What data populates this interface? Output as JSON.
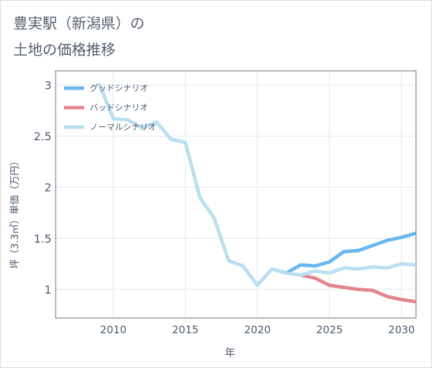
{
  "title_line1": "豊実駅（新潟県）の",
  "title_line2": "土地の価格推移",
  "chart_data": {
    "type": "line",
    "ylabel": "坪（3.3㎡）単価（万円）",
    "xlabel": "年",
    "xlim": [
      2006,
      2031
    ],
    "ylim": [
      0.72,
      3.14
    ],
    "xticks": [
      2010,
      2015,
      2020,
      2025,
      2030
    ],
    "yticks": [
      1,
      1.5,
      2,
      2.5,
      3
    ],
    "xtick_labels": [
      "2010",
      "2015",
      "2020",
      "2025",
      "2030"
    ],
    "ytick_labels": [
      "1",
      "1.5",
      "2",
      "2.5",
      "3"
    ],
    "legend_position": "top-left",
    "series": [
      {
        "name": "グッドシナリオ",
        "color": "#68b8ee",
        "x": [
          2021,
          2022,
          2023,
          2024,
          2025,
          2026,
          2027,
          2028,
          2029,
          2030,
          2031
        ],
        "y": [
          1.2,
          1.16,
          1.24,
          1.23,
          1.27,
          1.37,
          1.38,
          1.43,
          1.48,
          1.51,
          1.55
        ]
      },
      {
        "name": "バッドシナリオ",
        "color": "#e0868f",
        "x": [
          2021,
          2022,
          2023,
          2024,
          2025,
          2026,
          2027,
          2028,
          2029,
          2030,
          2031
        ],
        "y": [
          1.2,
          1.16,
          1.14,
          1.11,
          1.04,
          1.02,
          1.0,
          0.99,
          0.93,
          0.9,
          0.88
        ]
      },
      {
        "name": "ノーマルシナリオ",
        "color": "#b9dff0",
        "x": [
          2009,
          2010,
          2011,
          2012,
          2013,
          2014,
          2015,
          2016,
          2017,
          2018,
          2019,
          2020,
          2021,
          2022,
          2023,
          2024,
          2025,
          2026,
          2027,
          2028,
          2029,
          2030,
          2031
        ],
        "y": [
          3.02,
          2.67,
          2.66,
          2.58,
          2.64,
          2.47,
          2.44,
          1.9,
          1.7,
          1.28,
          1.23,
          1.04,
          1.2,
          1.16,
          1.14,
          1.18,
          1.16,
          1.21,
          1.2,
          1.22,
          1.21,
          1.25,
          1.24
        ]
      }
    ]
  }
}
